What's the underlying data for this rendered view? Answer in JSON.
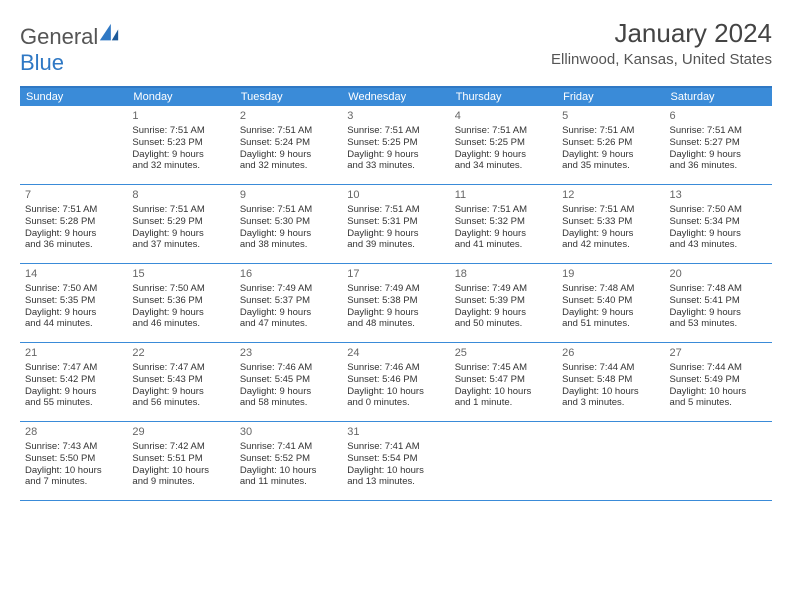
{
  "logo": {
    "line1": "General",
    "line2": "Blue"
  },
  "title": "January 2024",
  "location": "Ellinwood, Kansas, United States",
  "colors": {
    "header_bg": "#3a8bd8",
    "header_text": "#ffffff",
    "rule": "#2f78c4",
    "logo_blue": "#2f78c4",
    "body_text": "#333333",
    "background": "#ffffff"
  },
  "dayHeaders": [
    "Sunday",
    "Monday",
    "Tuesday",
    "Wednesday",
    "Thursday",
    "Friday",
    "Saturday"
  ],
  "weeks": [
    [
      {
        "empty": true
      },
      {
        "n": "1",
        "sr": "Sunrise: 7:51 AM",
        "ss": "Sunset: 5:23 PM",
        "d1": "Daylight: 9 hours",
        "d2": "and 32 minutes."
      },
      {
        "n": "2",
        "sr": "Sunrise: 7:51 AM",
        "ss": "Sunset: 5:24 PM",
        "d1": "Daylight: 9 hours",
        "d2": "and 32 minutes."
      },
      {
        "n": "3",
        "sr": "Sunrise: 7:51 AM",
        "ss": "Sunset: 5:25 PM",
        "d1": "Daylight: 9 hours",
        "d2": "and 33 minutes."
      },
      {
        "n": "4",
        "sr": "Sunrise: 7:51 AM",
        "ss": "Sunset: 5:25 PM",
        "d1": "Daylight: 9 hours",
        "d2": "and 34 minutes."
      },
      {
        "n": "5",
        "sr": "Sunrise: 7:51 AM",
        "ss": "Sunset: 5:26 PM",
        "d1": "Daylight: 9 hours",
        "d2": "and 35 minutes."
      },
      {
        "n": "6",
        "sr": "Sunrise: 7:51 AM",
        "ss": "Sunset: 5:27 PM",
        "d1": "Daylight: 9 hours",
        "d2": "and 36 minutes."
      }
    ],
    [
      {
        "n": "7",
        "sr": "Sunrise: 7:51 AM",
        "ss": "Sunset: 5:28 PM",
        "d1": "Daylight: 9 hours",
        "d2": "and 36 minutes."
      },
      {
        "n": "8",
        "sr": "Sunrise: 7:51 AM",
        "ss": "Sunset: 5:29 PM",
        "d1": "Daylight: 9 hours",
        "d2": "and 37 minutes."
      },
      {
        "n": "9",
        "sr": "Sunrise: 7:51 AM",
        "ss": "Sunset: 5:30 PM",
        "d1": "Daylight: 9 hours",
        "d2": "and 38 minutes."
      },
      {
        "n": "10",
        "sr": "Sunrise: 7:51 AM",
        "ss": "Sunset: 5:31 PM",
        "d1": "Daylight: 9 hours",
        "d2": "and 39 minutes."
      },
      {
        "n": "11",
        "sr": "Sunrise: 7:51 AM",
        "ss": "Sunset: 5:32 PM",
        "d1": "Daylight: 9 hours",
        "d2": "and 41 minutes."
      },
      {
        "n": "12",
        "sr": "Sunrise: 7:51 AM",
        "ss": "Sunset: 5:33 PM",
        "d1": "Daylight: 9 hours",
        "d2": "and 42 minutes."
      },
      {
        "n": "13",
        "sr": "Sunrise: 7:50 AM",
        "ss": "Sunset: 5:34 PM",
        "d1": "Daylight: 9 hours",
        "d2": "and 43 minutes."
      }
    ],
    [
      {
        "n": "14",
        "sr": "Sunrise: 7:50 AM",
        "ss": "Sunset: 5:35 PM",
        "d1": "Daylight: 9 hours",
        "d2": "and 44 minutes."
      },
      {
        "n": "15",
        "sr": "Sunrise: 7:50 AM",
        "ss": "Sunset: 5:36 PM",
        "d1": "Daylight: 9 hours",
        "d2": "and 46 minutes."
      },
      {
        "n": "16",
        "sr": "Sunrise: 7:49 AM",
        "ss": "Sunset: 5:37 PM",
        "d1": "Daylight: 9 hours",
        "d2": "and 47 minutes."
      },
      {
        "n": "17",
        "sr": "Sunrise: 7:49 AM",
        "ss": "Sunset: 5:38 PM",
        "d1": "Daylight: 9 hours",
        "d2": "and 48 minutes."
      },
      {
        "n": "18",
        "sr": "Sunrise: 7:49 AM",
        "ss": "Sunset: 5:39 PM",
        "d1": "Daylight: 9 hours",
        "d2": "and 50 minutes."
      },
      {
        "n": "19",
        "sr": "Sunrise: 7:48 AM",
        "ss": "Sunset: 5:40 PM",
        "d1": "Daylight: 9 hours",
        "d2": "and 51 minutes."
      },
      {
        "n": "20",
        "sr": "Sunrise: 7:48 AM",
        "ss": "Sunset: 5:41 PM",
        "d1": "Daylight: 9 hours",
        "d2": "and 53 minutes."
      }
    ],
    [
      {
        "n": "21",
        "sr": "Sunrise: 7:47 AM",
        "ss": "Sunset: 5:42 PM",
        "d1": "Daylight: 9 hours",
        "d2": "and 55 minutes."
      },
      {
        "n": "22",
        "sr": "Sunrise: 7:47 AM",
        "ss": "Sunset: 5:43 PM",
        "d1": "Daylight: 9 hours",
        "d2": "and 56 minutes."
      },
      {
        "n": "23",
        "sr": "Sunrise: 7:46 AM",
        "ss": "Sunset: 5:45 PM",
        "d1": "Daylight: 9 hours",
        "d2": "and 58 minutes."
      },
      {
        "n": "24",
        "sr": "Sunrise: 7:46 AM",
        "ss": "Sunset: 5:46 PM",
        "d1": "Daylight: 10 hours",
        "d2": "and 0 minutes."
      },
      {
        "n": "25",
        "sr": "Sunrise: 7:45 AM",
        "ss": "Sunset: 5:47 PM",
        "d1": "Daylight: 10 hours",
        "d2": "and 1 minute."
      },
      {
        "n": "26",
        "sr": "Sunrise: 7:44 AM",
        "ss": "Sunset: 5:48 PM",
        "d1": "Daylight: 10 hours",
        "d2": "and 3 minutes."
      },
      {
        "n": "27",
        "sr": "Sunrise: 7:44 AM",
        "ss": "Sunset: 5:49 PM",
        "d1": "Daylight: 10 hours",
        "d2": "and 5 minutes."
      }
    ],
    [
      {
        "n": "28",
        "sr": "Sunrise: 7:43 AM",
        "ss": "Sunset: 5:50 PM",
        "d1": "Daylight: 10 hours",
        "d2": "and 7 minutes."
      },
      {
        "n": "29",
        "sr": "Sunrise: 7:42 AM",
        "ss": "Sunset: 5:51 PM",
        "d1": "Daylight: 10 hours",
        "d2": "and 9 minutes."
      },
      {
        "n": "30",
        "sr": "Sunrise: 7:41 AM",
        "ss": "Sunset: 5:52 PM",
        "d1": "Daylight: 10 hours",
        "d2": "and 11 minutes."
      },
      {
        "n": "31",
        "sr": "Sunrise: 7:41 AM",
        "ss": "Sunset: 5:54 PM",
        "d1": "Daylight: 10 hours",
        "d2": "and 13 minutes."
      },
      {
        "empty": true
      },
      {
        "empty": true
      },
      {
        "empty": true
      }
    ]
  ]
}
